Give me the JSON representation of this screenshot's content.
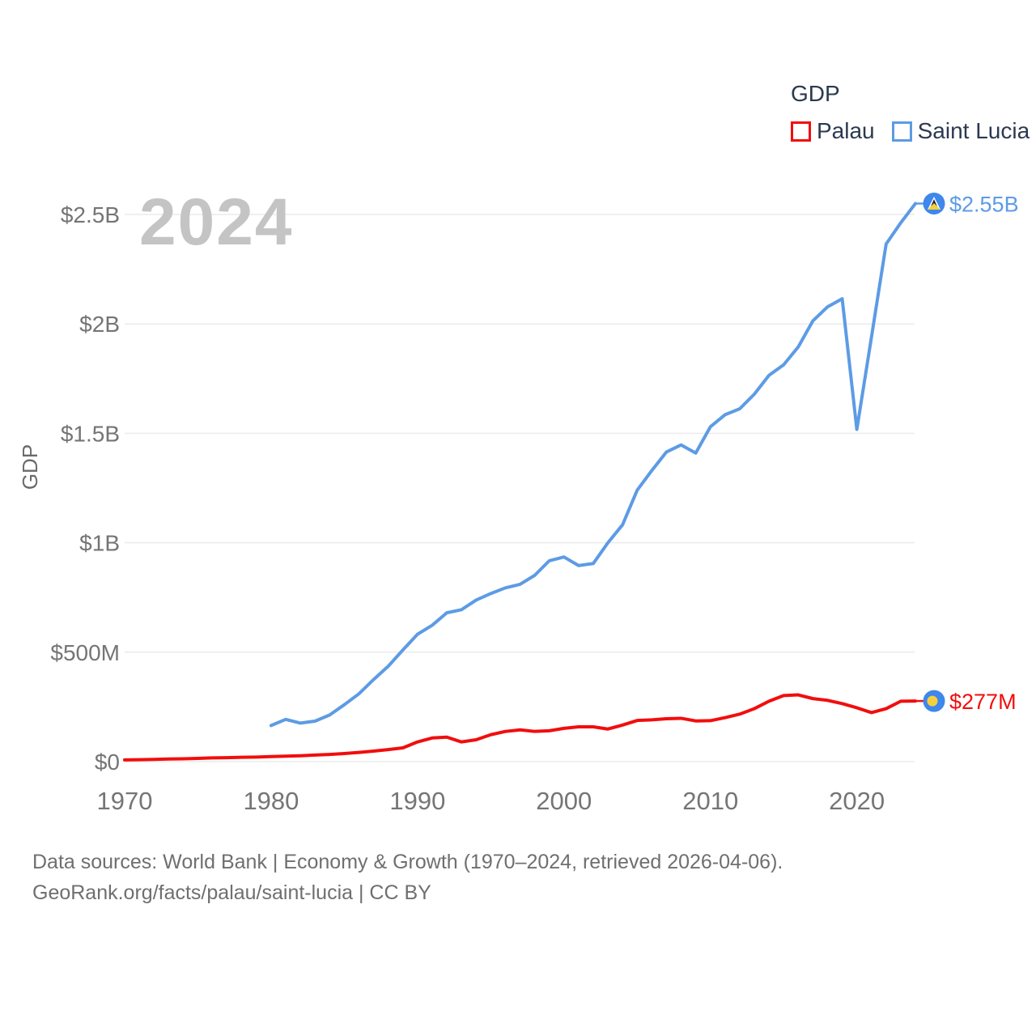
{
  "legend": {
    "title": "GDP",
    "items": [
      {
        "label": "Palau",
        "color": "#f20d0d"
      },
      {
        "label": "Saint Lucia",
        "color": "#5d9be4"
      }
    ]
  },
  "watermark": "2024",
  "footer": {
    "line1": "Data sources: World Bank | Economy & Growth (1970–2024, retrieved 2026-04-06).",
    "line2": "GeoRank.org/facts/palau/saint-lucia | CC BY"
  },
  "chart_data": {
    "type": "line",
    "title": "GDP",
    "ylabel": "GDP",
    "y_unit": "USD, millions",
    "grid": "horizontal",
    "legend_position": "top-right",
    "x_range": [
      1970,
      2024
    ],
    "x_ticks": [
      1970,
      1980,
      1990,
      2000,
      2010,
      2020
    ],
    "y_ticks": [
      {
        "label": "$0",
        "value": 0
      },
      {
        "label": "$500M",
        "value": 500
      },
      {
        "label": "$1B",
        "value": 1000
      },
      {
        "label": "$1.5B",
        "value": 1500
      },
      {
        "label": "$2B",
        "value": 2000
      },
      {
        "label": "$2.5B",
        "value": 2500
      }
    ],
    "series": [
      {
        "name": "Palau",
        "color": "#f20d0d",
        "start_year": 1970,
        "end_label": "$277M",
        "flag": "palau",
        "values": [
          8,
          9,
          10,
          12,
          13,
          15,
          17,
          18,
          20,
          21,
          23,
          25,
          27,
          30,
          33,
          37,
          42,
          48,
          55,
          63,
          90,
          108,
          112,
          90,
          100,
          123,
          138,
          145,
          138,
          141,
          152,
          159,
          159,
          149,
          167,
          188,
          191,
          196,
          198,
          186,
          187,
          201,
          217,
          242,
          276,
          302,
          305,
          288,
          280,
          265,
          246,
          224,
          242,
          276,
          277
        ]
      },
      {
        "name": "Saint Lucia",
        "color": "#5d9be4",
        "start_year": 1980,
        "end_label": "$2.55B",
        "flag": "saint-lucia",
        "values": [
          165,
          193,
          176,
          185,
          213,
          260,
          310,
          375,
          436,
          510,
          582,
          623,
          680,
          694,
          738,
          768,
          794,
          810,
          851,
          918,
          935,
          896,
          905,
          1000,
          1082,
          1240,
          1330,
          1415,
          1447,
          1410,
          1530,
          1585,
          1612,
          1679,
          1765,
          1813,
          1895,
          2014,
          2078,
          2115,
          1518,
          1940,
          2365,
          2462,
          2550
        ]
      }
    ],
    "flag_colors": {
      "palau": {
        "circle": "#3e87ec",
        "moon": "#f6cf3f"
      },
      "saint_lucia": {
        "circle": "#3e87ec",
        "triangle_white": "#ffffff",
        "triangle_black": "#1f2430",
        "triangle_yellow": "#f6cf3f"
      }
    }
  }
}
